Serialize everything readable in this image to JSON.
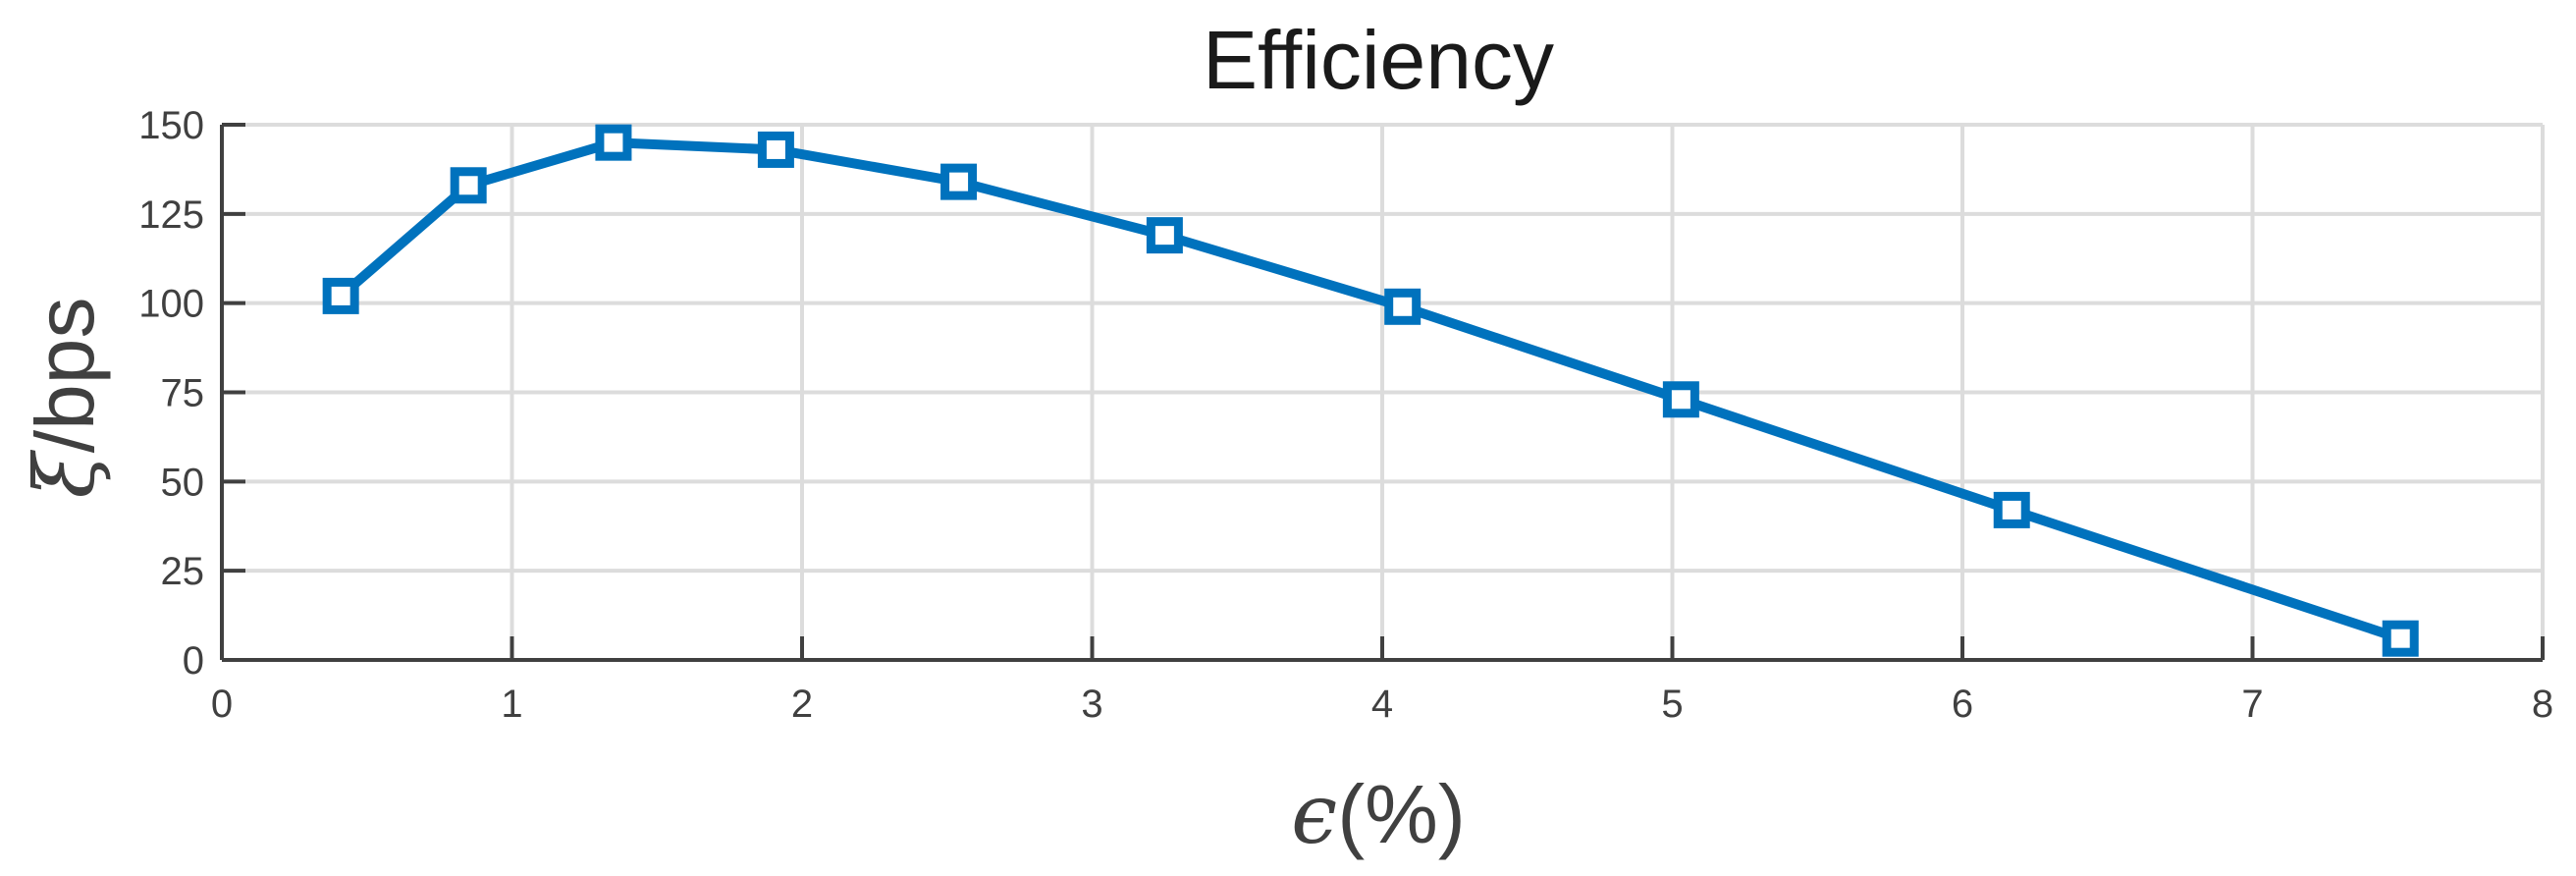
{
  "chart_data": {
    "type": "line",
    "title": "Efficiency",
    "xlabel_symbol": "ϵ",
    "xlabel_unit": "(%)",
    "ylabel_symbol": "ξ",
    "ylabel_unit": "/bps",
    "xlim": [
      0,
      8
    ],
    "ylim": [
      0,
      150
    ],
    "xticks": [
      0,
      1,
      2,
      3,
      4,
      5,
      6,
      7,
      8
    ],
    "yticks": [
      0,
      25,
      50,
      75,
      100,
      125,
      150
    ],
    "grid": true,
    "marker": "square",
    "series": [
      {
        "color": "#0072BD",
        "x": [
          0.41,
          0.85,
          1.35,
          1.91,
          2.54,
          3.25,
          4.07,
          5.03,
          6.17,
          7.51
        ],
        "y": [
          102,
          133,
          145,
          143,
          134,
          119,
          99,
          73,
          42,
          6
        ]
      }
    ]
  }
}
